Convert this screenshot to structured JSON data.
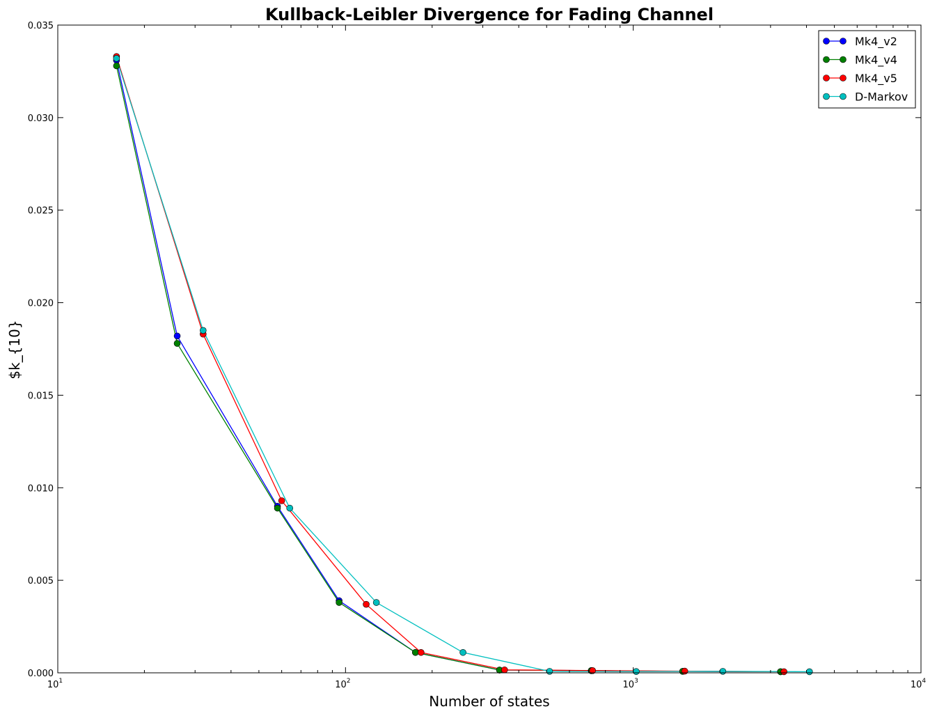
{
  "chart_data": {
    "type": "line",
    "title": "Kullback-Leibler Divergence for Fading Channel",
    "xlabel": "Number of states",
    "ylabel": "$k_{10}",
    "xscale": "log",
    "xlim": [
      10,
      10000
    ],
    "ylim": [
      0,
      0.035
    ],
    "x_ticks": [
      {
        "value": 10,
        "base": "10",
        "exp": "1"
      },
      {
        "value": 100,
        "base": "10",
        "exp": "2"
      },
      {
        "value": 1000,
        "base": "10",
        "exp": "3"
      },
      {
        "value": 10000,
        "base": "10",
        "exp": "4"
      }
    ],
    "y_ticks": [
      {
        "value": 0,
        "label": "0.000"
      },
      {
        "value": 0.005,
        "label": "0.005"
      },
      {
        "value": 0.01,
        "label": "0.010"
      },
      {
        "value": 0.015,
        "label": "0.015"
      },
      {
        "value": 0.02,
        "label": "0.020"
      },
      {
        "value": 0.025,
        "label": "0.025"
      },
      {
        "value": 0.03,
        "label": "0.030"
      },
      {
        "value": 0.035,
        "label": "0.035"
      }
    ],
    "legend_position": "top-right",
    "grid": false,
    "series": [
      {
        "name": "Mk4_v2",
        "color": "#0000ff",
        "x": [
          16,
          26,
          58,
          95,
          175,
          343,
          715,
          1485,
          3250
        ],
        "y": [
          0.0331,
          0.0182,
          0.009,
          0.0039,
          0.0011,
          0.00015,
          0.00012,
          8e-05,
          6e-05
        ]
      },
      {
        "name": "Mk4_v4",
        "color": "#008000",
        "x": [
          16,
          26,
          58,
          95,
          175,
          343,
          715,
          1485,
          3250
        ],
        "y": [
          0.0328,
          0.0178,
          0.0089,
          0.0038,
          0.0011,
          0.00015,
          0.00012,
          8e-05,
          6e-05
        ]
      },
      {
        "name": "Mk4_v5",
        "color": "#ff0000",
        "x": [
          16,
          32,
          60,
          118,
          183,
          357,
          722,
          1510,
          3340
        ],
        "y": [
          0.0333,
          0.0183,
          0.0093,
          0.0037,
          0.0011,
          0.00016,
          0.00012,
          9e-05,
          6e-05
        ]
      },
      {
        "name": "D-Markov",
        "color": "#00bfbf",
        "x": [
          16,
          32,
          64,
          128,
          256,
          512,
          1024,
          2048,
          4096
        ],
        "y": [
          0.0332,
          0.0185,
          0.0089,
          0.0038,
          0.0011,
          8e-05,
          7e-05,
          8e-05,
          6e-05
        ]
      }
    ]
  }
}
